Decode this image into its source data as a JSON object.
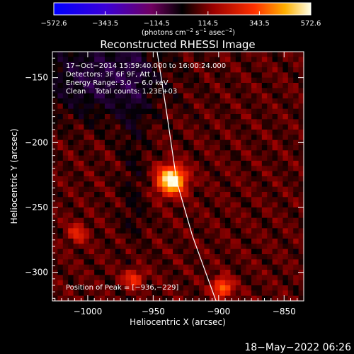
{
  "chart_data": {
    "type": "heatmap",
    "title": "Reconstructed RHESSI Image",
    "xlabel": "Heliocentric X (arcsec)",
    "ylabel": "Heliocentric Y (arcsec)",
    "xlim": [
      -1027,
      -835
    ],
    "ylim": [
      -322,
      -130
    ],
    "xticks": [
      -1000,
      -950,
      -900,
      -850
    ],
    "xtick_labels": [
      "−1000",
      "−950",
      "−900",
      "−850"
    ],
    "yticks": [
      -150,
      -200,
      -250,
      -300
    ],
    "ytick_labels": [
      "−150",
      "−200",
      "−250",
      "−300"
    ],
    "colorbar": {
      "range": [
        -572.6,
        572.6
      ],
      "ticks": [
        -572.6,
        -343.5,
        -114.5,
        114.5,
        343.5,
        572.6
      ],
      "tick_labels": [
        "−572.6",
        "−343.5",
        "−114.5",
        "114.5",
        "343.5",
        "572.6"
      ],
      "unit_main": "(photons cm",
      "unit_exp1": "−2",
      "unit_mid1": " s",
      "unit_exp2": "−1",
      "unit_mid2": " asec",
      "unit_exp3": "−2",
      "unit_end": ")"
    },
    "info_lines": [
      "17−Oct−2014 15:59:40.000 to 16:00:24.000",
      "Detectors: 3F 6F 9F, Att 1",
      "Energy Range: 3.0 − 6.0 keV",
      "Clean    Total counts: 1.23E+03"
    ],
    "peak_label": "Position of Peak = [−936,−229]",
    "peak": {
      "x": -936,
      "y": -229,
      "value": 572.6
    },
    "secondary_sources": [
      {
        "x": -897,
        "y": -312,
        "value": 300
      },
      {
        "x": -965,
        "y": -305,
        "value": 220
      },
      {
        "x": -1008,
        "y": -270,
        "value": 170
      }
    ],
    "limb_curve": [
      {
        "x": -947,
        "y": -130
      },
      {
        "x": -940,
        "y": -175
      },
      {
        "x": -932,
        "y": -230
      },
      {
        "x": -920,
        "y": -272
      },
      {
        "x": -902,
        "y": -322
      }
    ],
    "grid": false
  },
  "footer": {
    "date_stamp": "18−May−2022 06:26"
  }
}
